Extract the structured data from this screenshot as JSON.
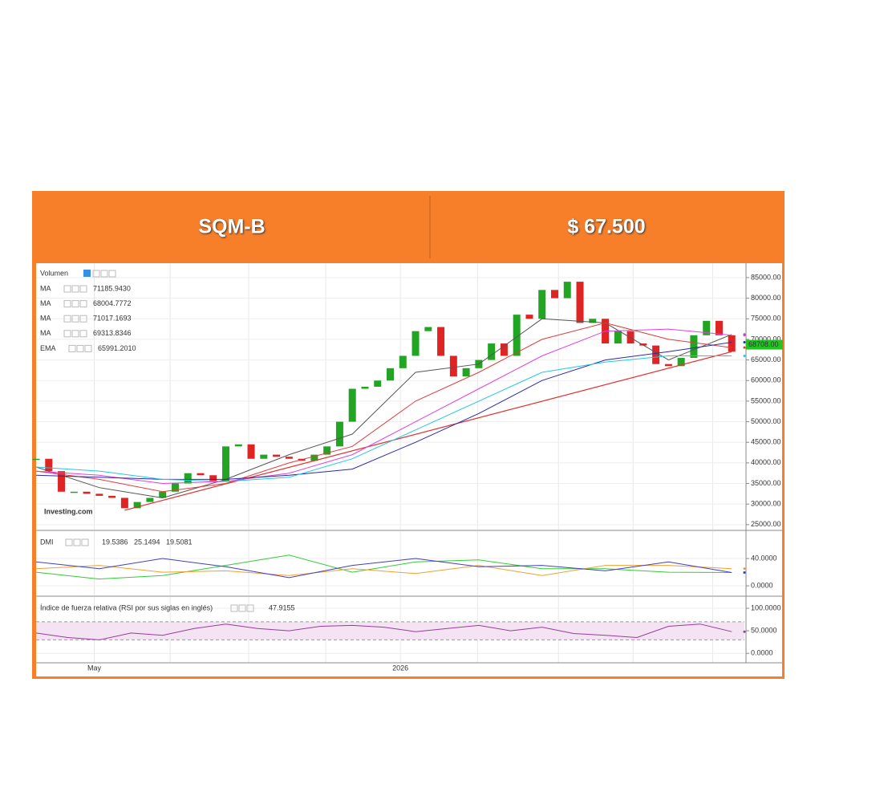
{
  "header": {
    "ticker": "SQM-B",
    "price": "$ 67.500"
  },
  "chart_data": [
    {
      "type": "candlestick",
      "volume_label": "Volumen",
      "watermark": "Investing.com",
      "x": [
        0,
        1,
        2,
        3,
        4,
        5,
        6,
        7,
        8,
        9,
        10,
        11,
        12,
        13,
        14,
        15,
        16,
        17,
        18,
        19,
        20,
        21,
        22,
        23,
        24,
        25,
        26,
        27,
        28,
        29,
        30,
        31,
        32,
        33,
        34,
        35,
        36,
        37,
        38,
        39,
        40,
        41,
        42,
        43,
        44,
        45,
        46,
        47,
        48,
        49,
        50,
        51,
        52,
        53,
        54,
        55
      ],
      "values": [
        41000,
        38000,
        33000,
        33000,
        32500,
        32000,
        31500,
        29000,
        30500,
        31500,
        33000,
        35000,
        37500,
        37000,
        35500,
        44000,
        44500,
        41000,
        42000,
        41500,
        41000,
        40500,
        42000,
        44000,
        50000,
        58000,
        58500,
        60000,
        63000,
        66000,
        72000,
        73000,
        66000,
        61000,
        63000,
        65000,
        69000,
        66000,
        76000,
        75000,
        82000,
        80000,
        84000,
        74000,
        75000,
        69000,
        72000,
        69000,
        68500,
        64000,
        63500,
        65500,
        71000,
        74500,
        71000,
        67000
      ],
      "up_color": "#22a522",
      "down_color": "#e02424",
      "last": {
        "value": 68708,
        "label": "68708.00"
      },
      "last_color": "#22c322",
      "series": [
        {
          "name": "MA",
          "color": "#555555",
          "current": {
            "value": 71185.943,
            "label": "71185.9430"
          },
          "x": [
            0,
            5,
            10,
            15,
            20,
            25,
            30,
            35,
            40,
            45,
            50,
            55
          ],
          "values": [
            39000,
            34000,
            31500,
            36000,
            42000,
            47000,
            62000,
            64000,
            75000,
            74000,
            65000,
            71186
          ]
        },
        {
          "name": "MA",
          "color": "#e03c3c",
          "current": 68004.7772,
          "x": [
            0,
            5,
            10,
            15,
            20,
            25,
            30,
            35,
            40,
            45,
            50,
            55
          ],
          "values": [
            38000,
            36000,
            33000,
            35000,
            40000,
            44000,
            55000,
            62000,
            70000,
            74000,
            70000,
            68005
          ]
        },
        {
          "name": "MA",
          "color": "#e040e0",
          "current": 71017.1693,
          "x": [
            0,
            5,
            10,
            15,
            20,
            25,
            30,
            35,
            40,
            45,
            50,
            55
          ],
          "values": [
            38000,
            37000,
            35000,
            35500,
            37500,
            42000,
            50000,
            58000,
            66000,
            72000,
            72500,
            71017
          ]
        },
        {
          "name": "MA",
          "color": "#2a2aa8",
          "current": 69313.8346,
          "x": [
            0,
            5,
            10,
            15,
            20,
            25,
            30,
            35,
            40,
            45,
            50,
            55
          ],
          "values": [
            37000,
            36500,
            36000,
            36000,
            37000,
            38500,
            45000,
            52000,
            60000,
            65000,
            67000,
            69314
          ]
        },
        {
          "name": "EMA",
          "color": "#22c8e0",
          "current": {
            "value": 65991.201,
            "label": "65991.2010"
          },
          "x": [
            0,
            5,
            10,
            15,
            20,
            25,
            30,
            35,
            40,
            45,
            50,
            55
          ],
          "values": [
            39000,
            38000,
            36000,
            35500,
            36500,
            41000,
            48000,
            55000,
            62000,
            64500,
            66000,
            65991
          ]
        }
      ],
      "trendline": {
        "color": "#e03030",
        "x": [
          7,
          55
        ],
        "values": [
          28500,
          67000
        ]
      },
      "xlim": [
        0,
        56
      ],
      "xticks": [
        {
          "value": 4.6,
          "label": "May"
        },
        {
          "value": 10.6,
          "label": null
        },
        {
          "value": 16.8,
          "label": null
        },
        {
          "value": 22.9,
          "label": null
        },
        {
          "value": 28.8,
          "label": "2026"
        },
        {
          "value": 34.9,
          "label": null
        },
        {
          "value": 41.3,
          "label": null
        },
        {
          "value": 47.2,
          "label": null
        },
        {
          "value": 53.5,
          "label": null
        }
      ],
      "ylim": [
        23800,
        88500
      ],
      "yticks": [
        {
          "value": 25000,
          "label": "25000.00"
        },
        {
          "value": 30000,
          "label": "30000.00"
        },
        {
          "value": 35000,
          "label": "35000.00"
        },
        {
          "value": 40000,
          "label": "40000.00"
        },
        {
          "value": 45000,
          "label": "45000.00"
        },
        {
          "value": 50000,
          "label": "50000.00"
        },
        {
          "value": 55000,
          "label": "55000.00"
        },
        {
          "value": 60000,
          "label": "60000.00"
        },
        {
          "value": 65000,
          "label": "65000.00"
        },
        {
          "value": 70000,
          "label": "70000.00"
        },
        {
          "value": 75000,
          "label": "75000.00"
        },
        {
          "value": 80000,
          "label": "80000.00"
        },
        {
          "value": 85000,
          "label": "85000.00"
        }
      ],
      "grid": true
    },
    {
      "type": "line",
      "title": "DMI",
      "xlim": [
        0,
        56
      ],
      "series": [
        {
          "color": "#33cc33",
          "current": 19.5386,
          "x": [
            0,
            5,
            10,
            15,
            20,
            25,
            30,
            35,
            40,
            45,
            50,
            55
          ],
          "values": [
            20,
            10,
            15,
            30,
            45,
            20,
            35,
            38,
            25,
            25,
            20,
            19.5
          ]
        },
        {
          "color": "#f0a030",
          "current": 25.1494,
          "x": [
            0,
            5,
            10,
            15,
            20,
            25,
            30,
            35,
            40,
            45,
            50,
            55
          ],
          "values": [
            25,
            30,
            20,
            22,
            15,
            25,
            18,
            30,
            15,
            30,
            30,
            25.1
          ]
        },
        {
          "color": "#4040c0",
          "current": 19.5081,
          "x": [
            0,
            5,
            10,
            15,
            20,
            25,
            30,
            35,
            40,
            45,
            50,
            55
          ],
          "values": [
            35,
            25,
            40,
            28,
            12,
            30,
            40,
            28,
            30,
            22,
            35,
            19.5
          ]
        }
      ],
      "ylim": [
        -14,
        80
      ],
      "yticks": [
        {
          "value": 0,
          "label": "0.0000"
        },
        {
          "value": 40,
          "label": "40.0000"
        }
      ]
    },
    {
      "type": "line",
      "title": "Índice de fuerza relativa (RSI por sus siglas en inglés)",
      "xlim": [
        0,
        56
      ],
      "band": [
        30,
        70
      ],
      "band_color": "#f3e3f3",
      "series": [
        {
          "color": "#9a3c9a",
          "current": 47.9155,
          "x": [
            0,
            2.5,
            5,
            7.5,
            10,
            12.5,
            15,
            17.5,
            20,
            22.5,
            25,
            27.5,
            30,
            32.5,
            35,
            37.5,
            40,
            42.5,
            45,
            47.5,
            50,
            52.5,
            55
          ],
          "values": [
            45,
            35,
            30,
            45,
            40,
            55,
            65,
            55,
            50,
            60,
            62,
            58,
            48,
            55,
            62,
            50,
            58,
            44,
            40,
            35,
            60,
            65,
            48
          ]
        }
      ],
      "ylim": [
        -21,
        125
      ],
      "yticks": [
        {
          "value": 0,
          "label": "0.0000"
        },
        {
          "value": 50,
          "label": "50.0000"
        },
        {
          "value": 100,
          "label": "100.0000"
        }
      ]
    }
  ]
}
